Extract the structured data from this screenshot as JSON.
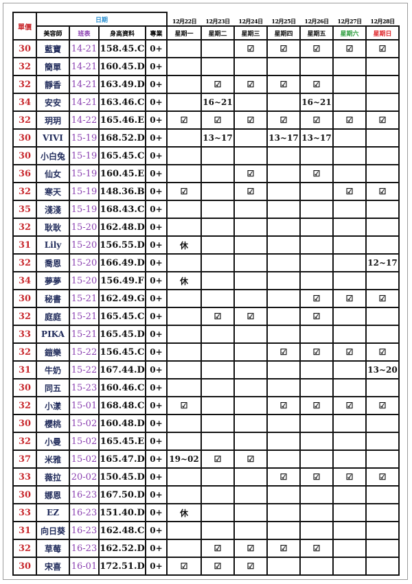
{
  "header": {
    "price": "單價",
    "date_group": "日期",
    "stylist": "美容師",
    "schedule": "班表",
    "height": "身高資料",
    "pro": "專業",
    "dates": [
      "12月22日",
      "12月23日",
      "12月24日",
      "12月25日",
      "12月26日",
      "12月27日",
      "12月28日"
    ],
    "weekdays": [
      "星期一",
      "星期二",
      "星期三",
      "星期四",
      "星期五",
      "星期六",
      "星期日"
    ],
    "weekday_colors": [
      "#111111",
      "#111111",
      "#111111",
      "#111111",
      "#111111",
      "#2e9e3e",
      "#e0282d"
    ]
  },
  "rows": [
    {
      "price": "30",
      "name": "藍寶",
      "schedule": "14-21",
      "height": "158.45.C",
      "pro": "0+",
      "days": [
        "",
        "",
        "☑",
        "☑",
        "☑",
        "☑",
        "☑"
      ]
    },
    {
      "price": "32",
      "name": "簡單",
      "schedule": "14-21",
      "height": "160.45.D",
      "pro": "0+",
      "days": [
        "",
        "",
        "",
        "",
        "",
        "",
        ""
      ]
    },
    {
      "price": "32",
      "name": "靜香",
      "schedule": "14-21",
      "height": "163.49.D",
      "pro": "0+",
      "days": [
        "",
        "☑",
        "☑",
        "☑",
        "☑",
        "",
        ""
      ]
    },
    {
      "price": "34",
      "name": "安安",
      "schedule": "14-21",
      "height": "163.46.C",
      "pro": "0+",
      "days": [
        "",
        "16~21",
        "",
        "",
        "16~21",
        "",
        ""
      ]
    },
    {
      "price": "32",
      "name": "玥玥",
      "schedule": "14-22",
      "height": "165.46.E",
      "pro": "0+",
      "days": [
        "☑",
        "☑",
        "☑",
        "☑",
        "☑",
        "☑",
        "☑"
      ]
    },
    {
      "price": "30",
      "name": "VIVI",
      "schedule": "15-19",
      "height": "168.52.D",
      "pro": "0+",
      "days": [
        "",
        "13~17",
        "",
        "13~17",
        "13~17",
        "",
        ""
      ]
    },
    {
      "price": "30",
      "name": "小白兔",
      "schedule": "15-19",
      "height": "165.45.C",
      "pro": "0+",
      "days": [
        "",
        "",
        "",
        "",
        "",
        "",
        ""
      ]
    },
    {
      "price": "36",
      "name": "仙女",
      "schedule": "15-19",
      "height": "160.45.E",
      "pro": "0+",
      "days": [
        "",
        "",
        "☑",
        "",
        "☑",
        "",
        ""
      ]
    },
    {
      "price": "32",
      "name": "寒天",
      "schedule": "15-19",
      "height": "148.36.B",
      "pro": "0+",
      "days": [
        "☑",
        "",
        "☑",
        "",
        "",
        "☑",
        "☑"
      ]
    },
    {
      "price": "35",
      "name": "淺淺",
      "schedule": "15-19",
      "height": "168.43.C",
      "pro": "0+",
      "days": [
        "",
        "",
        "",
        "",
        "",
        "",
        ""
      ]
    },
    {
      "price": "32",
      "name": "耿耿",
      "schedule": "15-20",
      "height": "162.48.D",
      "pro": "0+",
      "days": [
        "",
        "",
        "",
        "",
        "",
        "",
        ""
      ]
    },
    {
      "price": "31",
      "name": "Lily",
      "schedule": "15-20",
      "height": "156.55.D",
      "pro": "0+",
      "days": [
        "休",
        "",
        "",
        "",
        "",
        "",
        ""
      ]
    },
    {
      "price": "32",
      "name": "喬恩",
      "schedule": "15-20",
      "height": "166.49.D",
      "pro": "0+",
      "days": [
        "",
        "",
        "",
        "",
        "",
        "",
        "12~17"
      ]
    },
    {
      "price": "34",
      "name": "夢夢",
      "schedule": "15-20",
      "height": "156.49.F",
      "pro": "0+",
      "days": [
        "休",
        "",
        "",
        "",
        "",
        "",
        ""
      ]
    },
    {
      "price": "30",
      "name": "秘書",
      "schedule": "15-21",
      "height": "162.49.G",
      "pro": "0+",
      "days": [
        "",
        "",
        "",
        "",
        "☑",
        "☑",
        "☑"
      ]
    },
    {
      "price": "32",
      "name": "庭庭",
      "schedule": "15-21",
      "height": "165.45.C",
      "pro": "0+",
      "days": [
        "",
        "☑",
        "☑",
        "",
        "☑",
        "",
        ""
      ]
    },
    {
      "price": "33",
      "name": "PIKA",
      "schedule": "15-21",
      "height": "165.45.D",
      "pro": "0+",
      "days": [
        "",
        "",
        "",
        "",
        "",
        "",
        ""
      ]
    },
    {
      "price": "32",
      "name": "鎧樂",
      "schedule": "15-22",
      "height": "156.45.C",
      "pro": "0+",
      "days": [
        "",
        "",
        "",
        "☑",
        "☑",
        "☑",
        "☑"
      ]
    },
    {
      "price": "31",
      "name": "牛奶",
      "schedule": "15-22",
      "height": "167.44.D",
      "pro": "0+",
      "days": [
        "",
        "",
        "",
        "",
        "",
        "",
        "13~20"
      ]
    },
    {
      "price": "30",
      "name": "同五",
      "schedule": "15-23",
      "height": "160.46.C",
      "pro": "0+",
      "days": [
        "",
        "",
        "",
        "",
        "",
        "",
        ""
      ]
    },
    {
      "price": "32",
      "name": "小漾",
      "schedule": "15-01",
      "height": "168.48.C",
      "pro": "0+",
      "days": [
        "☑",
        "",
        "",
        "☑",
        "☑",
        "☑",
        "☑"
      ]
    },
    {
      "price": "30",
      "name": "櫻桃",
      "schedule": "15-02",
      "height": "160.48.D",
      "pro": "0+",
      "days": [
        "",
        "",
        "",
        "",
        "",
        "",
        ""
      ]
    },
    {
      "price": "32",
      "name": "小曼",
      "schedule": "15-02",
      "height": "165.45.E",
      "pro": "0+",
      "days": [
        "",
        "",
        "",
        "",
        "",
        "",
        ""
      ]
    },
    {
      "price": "37",
      "name": "米雅",
      "schedule": "15-02",
      "height": "165.47.D",
      "pro": "0+",
      "days": [
        "19~02",
        "☑",
        "☑",
        "",
        "",
        "",
        ""
      ]
    },
    {
      "price": "33",
      "name": "薇拉",
      "schedule": "20-02",
      "height": "150.45.D",
      "pro": "0+",
      "days": [
        "",
        "",
        "",
        "☑",
        "☑",
        "☑",
        "☑"
      ]
    },
    {
      "price": "30",
      "name": "娜恩",
      "schedule": "16-23",
      "height": "167.50.D",
      "pro": "0+",
      "days": [
        "",
        "",
        "",
        "",
        "",
        "",
        ""
      ]
    },
    {
      "price": "33",
      "name": "EZ",
      "schedule": "16-23",
      "height": "151.40.D",
      "pro": "0+",
      "days": [
        "休",
        "",
        "",
        "",
        "",
        "",
        ""
      ]
    },
    {
      "price": "31",
      "name": "向日葵",
      "schedule": "16-23",
      "height": "162.48.C",
      "pro": "0+",
      "days": [
        "",
        "",
        "",
        "",
        "",
        "",
        ""
      ]
    },
    {
      "price": "32",
      "name": "草莓",
      "schedule": "16-23",
      "height": "162.52.D",
      "pro": "0+",
      "days": [
        "",
        "☑",
        "☑",
        "☑",
        "☑",
        "",
        ""
      ]
    },
    {
      "price": "30",
      "name": "宋喜",
      "schedule": "16-01",
      "height": "172.51.D",
      "pro": "0+",
      "days": [
        "☑",
        "☑",
        "☑",
        "",
        "",
        "",
        ""
      ]
    }
  ]
}
